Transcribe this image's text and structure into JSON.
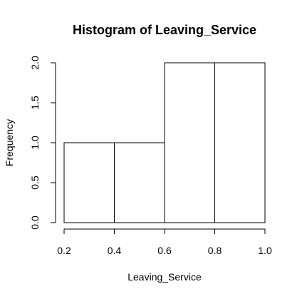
{
  "chart_data": {
    "type": "bar",
    "title": "Histogram of Leaving_Service",
    "xlabel": "Leaving_Service",
    "ylabel": "Frequency",
    "bins": [
      {
        "start": 0.2,
        "end": 0.4,
        "count": 1
      },
      {
        "start": 0.4,
        "end": 0.6,
        "count": 1
      },
      {
        "start": 0.6,
        "end": 0.8,
        "count": 2
      },
      {
        "start": 0.8,
        "end": 1.0,
        "count": 2
      }
    ],
    "xlim": [
      0.2,
      1.0
    ],
    "ylim": [
      0,
      2
    ],
    "x_ticks": [
      "0.2",
      "0.4",
      "0.6",
      "0.8",
      "1.0"
    ],
    "y_ticks": [
      "0.0",
      "0.5",
      "1.0",
      "1.5",
      "2.0"
    ],
    "grid": false,
    "bar_fill": "#ffffff",
    "bar_stroke": "#000000"
  }
}
